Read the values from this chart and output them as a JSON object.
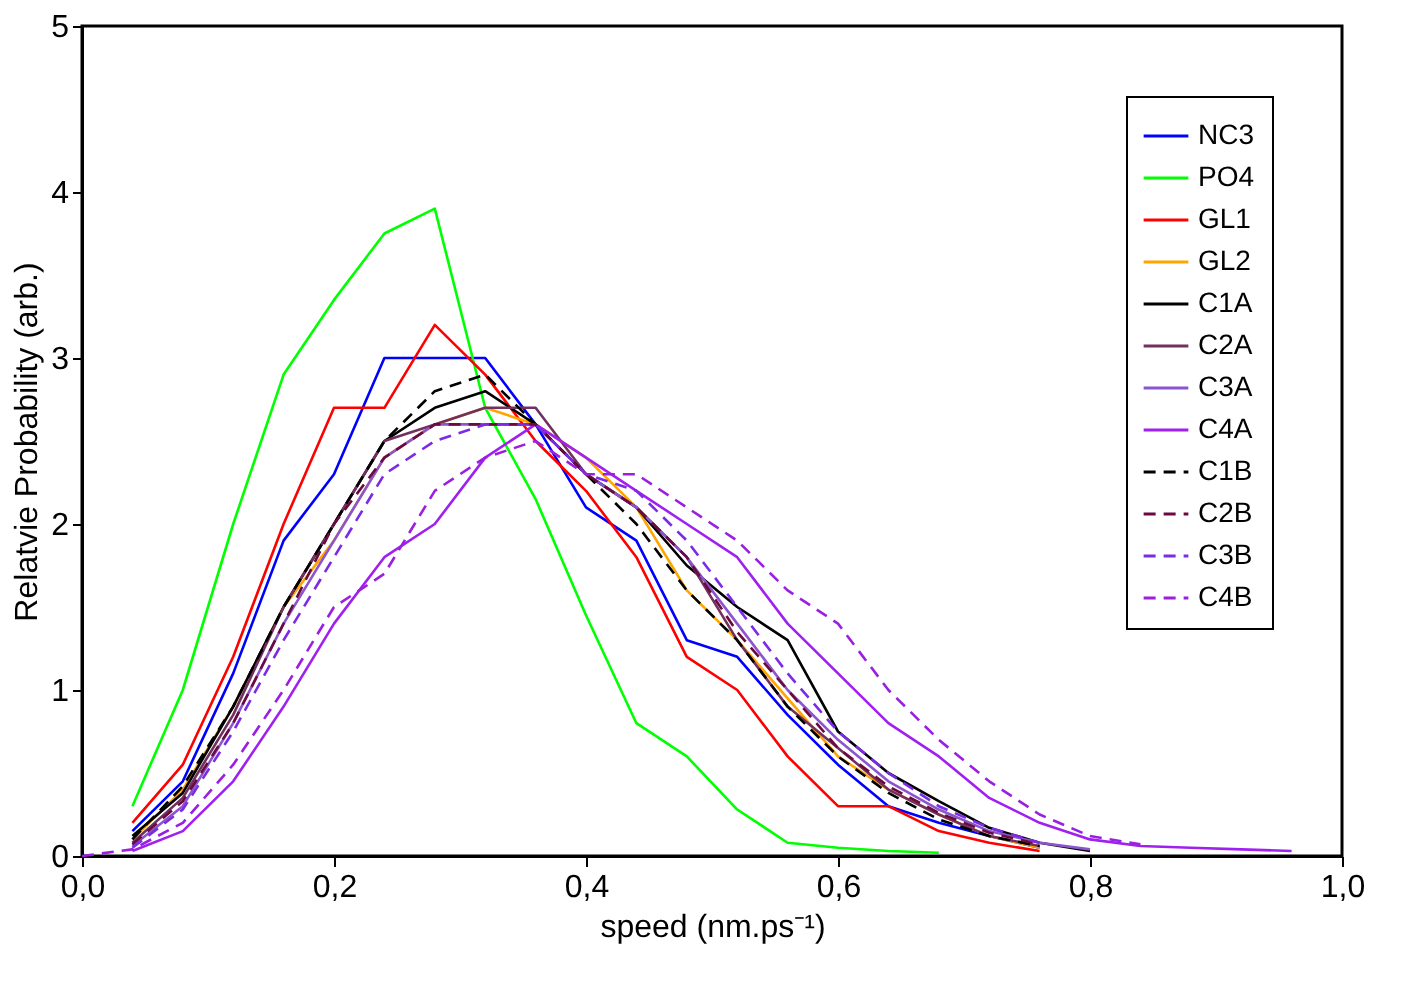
{
  "chart_data": {
    "type": "line",
    "xlabel": "speed (nm.ps⁻¹)",
    "ylabel": "Relatvie Probability (arb.)",
    "x": [
      0,
      0.04,
      0.08,
      0.12,
      0.16,
      0.2,
      0.24,
      0.28,
      0.32,
      0.36,
      0.4,
      0.44,
      0.48,
      0.52,
      0.56,
      0.6,
      0.64,
      0.68,
      0.72,
      0.76,
      0.8,
      0.84,
      0.88,
      0.92,
      0.96
    ],
    "xlim": [
      0,
      1.0
    ],
    "xticks": [
      {
        "value": 0,
        "label": "0,0"
      },
      {
        "value": 0.2,
        "label": "0,2"
      },
      {
        "value": 0.4,
        "label": "0,4"
      },
      {
        "value": 0.6,
        "label": "0,6"
      },
      {
        "value": 0.8,
        "label": "0,8"
      },
      {
        "value": 1.0,
        "label": "1,0"
      }
    ],
    "ylim": [
      0,
      5
    ],
    "yticks": [
      0,
      1,
      2,
      3,
      4,
      5
    ],
    "grid": false,
    "legend": "top right",
    "marker": "none",
    "series": [
      {
        "name": "NC3",
        "color": "#0000ff",
        "line_style": "solid",
        "values": [
          null,
          0.15,
          0.45,
          1.1,
          1.9,
          2.3,
          3.0,
          3.0,
          3.0,
          2.6,
          2.1,
          1.9,
          1.3,
          1.2,
          0.85,
          0.55,
          0.3,
          0.2,
          0.12,
          0.05,
          null,
          null,
          null,
          null,
          null
        ]
      },
      {
        "name": "PO4",
        "color": "#00ff00",
        "line_style": "solid",
        "values": [
          null,
          0.3,
          1.0,
          2.0,
          2.9,
          3.35,
          3.75,
          3.9,
          2.7,
          2.15,
          1.45,
          0.8,
          0.6,
          0.28,
          0.08,
          0.05,
          0.03,
          0.02,
          null,
          null,
          null,
          null,
          null,
          null,
          null
        ]
      },
      {
        "name": "GL1",
        "color": "#ff0000",
        "line_style": "solid",
        "values": [
          null,
          0.2,
          0.55,
          1.2,
          2.0,
          2.7,
          2.7,
          3.2,
          2.9,
          2.5,
          2.2,
          1.8,
          1.2,
          1.0,
          0.6,
          0.3,
          0.3,
          0.15,
          0.08,
          0.03,
          null,
          null,
          null,
          null,
          null
        ]
      },
      {
        "name": "GL2",
        "color": "#ffa500",
        "line_style": "solid",
        "values": [
          null,
          0.1,
          0.4,
          0.9,
          1.5,
          1.9,
          2.4,
          2.6,
          2.7,
          2.6,
          2.4,
          2.1,
          1.6,
          1.3,
          0.95,
          0.6,
          0.4,
          0.25,
          0.12,
          0.05,
          null,
          null,
          null,
          null,
          null
        ]
      },
      {
        "name": "C1A",
        "color": "#000000",
        "line_style": "solid",
        "values": [
          null,
          0.12,
          0.38,
          0.9,
          1.5,
          2.0,
          2.5,
          2.7,
          2.8,
          2.6,
          2.3,
          2.1,
          1.75,
          1.5,
          1.3,
          0.75,
          0.5,
          0.33,
          0.17,
          0.08,
          0.03,
          null,
          null,
          null,
          null
        ]
      },
      {
        "name": "C2A",
        "color": "#72305e",
        "line_style": "solid",
        "values": [
          null,
          0.08,
          0.35,
          0.85,
          1.5,
          2.0,
          2.5,
          2.6,
          2.7,
          2.7,
          2.3,
          2.1,
          1.8,
          1.3,
          0.9,
          0.65,
          0.4,
          0.25,
          0.12,
          0.06,
          null,
          null,
          null,
          null,
          null
        ]
      },
      {
        "name": "C3A",
        "color": "#8b55d0",
        "line_style": "solid",
        "values": [
          null,
          0.06,
          0.3,
          0.8,
          1.4,
          1.9,
          2.4,
          2.6,
          2.6,
          2.6,
          2.3,
          2.1,
          1.8,
          1.4,
          1.0,
          0.7,
          0.45,
          0.28,
          0.15,
          0.08,
          0.04,
          null,
          null,
          null,
          null
        ]
      },
      {
        "name": "C4A",
        "color": "#a020f0",
        "line_style": "solid",
        "values": [
          null,
          0.03,
          0.15,
          0.45,
          0.9,
          1.4,
          1.8,
          2.0,
          2.4,
          2.6,
          2.4,
          2.2,
          2.0,
          1.8,
          1.4,
          1.1,
          0.8,
          0.6,
          0.35,
          0.2,
          0.1,
          0.06,
          0.05,
          0.04,
          0.03
        ]
      },
      {
        "name": "C1B",
        "color": "#000000",
        "line_style": "dashed",
        "values": [
          null,
          0.1,
          0.42,
          0.9,
          1.5,
          2.0,
          2.5,
          2.8,
          2.9,
          2.6,
          2.3,
          2.0,
          1.6,
          1.3,
          0.9,
          0.6,
          0.38,
          0.22,
          0.12,
          0.06,
          null,
          null,
          null,
          null,
          null
        ]
      },
      {
        "name": "C2B",
        "color": "#6a0a3e",
        "line_style": "dashed",
        "values": [
          null,
          0.07,
          0.33,
          0.8,
          1.4,
          2.0,
          2.4,
          2.6,
          2.6,
          2.6,
          2.3,
          2.1,
          1.8,
          1.35,
          1.0,
          0.65,
          0.42,
          0.26,
          0.14,
          0.07,
          null,
          null,
          null,
          null,
          null
        ]
      },
      {
        "name": "C3B",
        "color": "#7b2be6",
        "line_style": "dashed",
        "values": [
          null,
          0.05,
          0.28,
          0.75,
          1.3,
          1.8,
          2.3,
          2.5,
          2.6,
          2.6,
          2.3,
          2.2,
          1.9,
          1.5,
          1.1,
          0.75,
          0.5,
          0.3,
          0.17,
          0.08,
          null,
          null,
          null,
          null,
          null
        ]
      },
      {
        "name": "C4B",
        "color": "#9a1fe0",
        "line_style": "dashed",
        "values": [
          0,
          0.04,
          0.2,
          0.55,
          1.0,
          1.5,
          1.7,
          2.2,
          2.4,
          2.5,
          2.3,
          2.3,
          2.1,
          1.9,
          1.6,
          1.4,
          1.0,
          0.7,
          0.45,
          0.25,
          0.12,
          0.07,
          null,
          null,
          null
        ]
      }
    ]
  }
}
